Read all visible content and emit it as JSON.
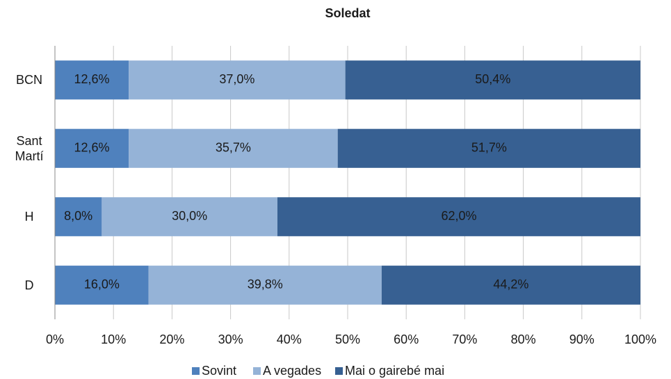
{
  "chart_data": {
    "type": "stacked_barh",
    "title": "Soledat",
    "categories": [
      "BCN",
      "Sant Martí",
      "H",
      "D"
    ],
    "series": [
      {
        "name": "Sovint",
        "color": "#4f81bd",
        "label_color": "#1a1a1a",
        "values": [
          12.6,
          12.6,
          8.0,
          16.0
        ],
        "value_labels": [
          "12,6%",
          "12,6%",
          "8,0%",
          "16,0%"
        ]
      },
      {
        "name": "A vegades",
        "color": "#95b3d7",
        "label_color": "#1a1a1a",
        "values": [
          37.0,
          35.7,
          30.0,
          39.8
        ],
        "value_labels": [
          "37,0%",
          "35,7%",
          "30,0%",
          "39,8%"
        ]
      },
      {
        "name": "Mai o gairebé mai",
        "color": "#376092",
        "label_color": "#ffffff",
        "values": [
          50.4,
          51.7,
          62.0,
          44.2
        ],
        "value_labels": [
          "50,4%",
          "51,7%",
          "62,0%",
          "44,2%"
        ]
      }
    ],
    "xlim": [
      0,
      100
    ],
    "xticks": [
      {
        "value": 0,
        "label": "0%"
      },
      {
        "value": 10,
        "label": "10%"
      },
      {
        "value": 20,
        "label": "20%"
      },
      {
        "value": 30,
        "label": "30%"
      },
      {
        "value": 40,
        "label": "40%"
      },
      {
        "value": 50,
        "label": "50%"
      },
      {
        "value": 60,
        "label": "60%"
      },
      {
        "value": 70,
        "label": "70%"
      },
      {
        "value": 80,
        "label": "80%"
      },
      {
        "value": 90,
        "label": "90%"
      },
      {
        "value": 100,
        "label": "100%"
      }
    ],
    "grid": true,
    "legend": "bottom"
  }
}
